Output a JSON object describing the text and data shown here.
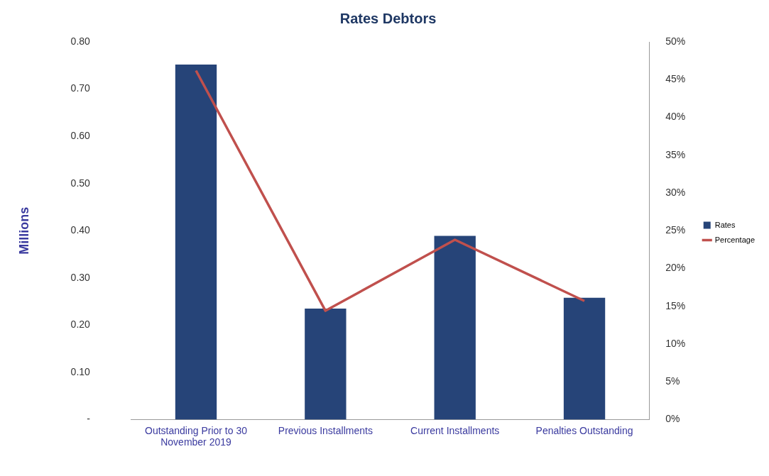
{
  "chart_data": {
    "type": "bar",
    "title": "Rates Debtors",
    "ylabel": "Millions",
    "categories": [
      "Outstanding Prior to 30 November 2019",
      "Previous Installments",
      "Current Installments",
      "Penalties Outstanding"
    ],
    "series": [
      {
        "name": "Rates",
        "color": "#264478",
        "values": [
          0.752,
          0.235,
          0.389,
          0.258
        ]
      },
      {
        "name": "Percentage",
        "type": "line",
        "axis": "y2",
        "color": "#c0504d",
        "values": [
          46.2,
          14.4,
          23.8,
          15.7
        ]
      }
    ],
    "ylim": [
      0,
      0.8
    ],
    "yticks": [
      {
        "value": 0,
        "label": "-"
      },
      {
        "value": 0.1,
        "label": "0.10"
      },
      {
        "value": 0.2,
        "label": "0.20"
      },
      {
        "value": 0.3,
        "label": "0.30"
      },
      {
        "value": 0.4,
        "label": "0.40"
      },
      {
        "value": 0.5,
        "label": "0.50"
      },
      {
        "value": 0.6,
        "label": "0.60"
      },
      {
        "value": 0.7,
        "label": "0.70"
      },
      {
        "value": 0.8,
        "label": "0.80"
      }
    ],
    "y2lim": [
      0,
      50
    ],
    "y2ticks": [
      {
        "value": 0,
        "label": "0%"
      },
      {
        "value": 5,
        "label": "5%"
      },
      {
        "value": 10,
        "label": "10%"
      },
      {
        "value": 15,
        "label": "15%"
      },
      {
        "value": 20,
        "label": "20%"
      },
      {
        "value": 25,
        "label": "25%"
      },
      {
        "value": 30,
        "label": "30%"
      },
      {
        "value": 35,
        "label": "35%"
      },
      {
        "value": 40,
        "label": "40%"
      },
      {
        "value": 45,
        "label": "45%"
      },
      {
        "value": 50,
        "label": "50%"
      }
    ],
    "grid": false,
    "legend": "right",
    "marker": "none",
    "line_style": "solid"
  }
}
